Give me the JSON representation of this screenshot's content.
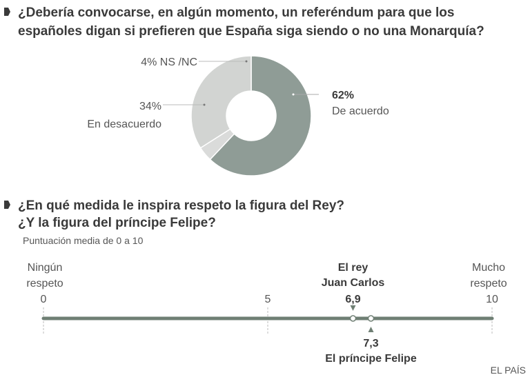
{
  "chart_data": [
    {
      "type": "pie",
      "variant": "donut",
      "title_lines": [
        "¿Debería convocarse, en algún momento, un referéndum para que los",
        "españoles digan si prefieren que España siga siendo o no una Monarquía?"
      ],
      "slices": [
        {
          "label": "De acuerdo",
          "value": 62,
          "value_label": "62%",
          "color": "#8f9c96"
        },
        {
          "label": "NS /NC",
          "value": 4,
          "value_label": "4%",
          "color": "#dadbda"
        },
        {
          "label": "En desacuerdo",
          "value": 34,
          "value_label": "34%",
          "color": "#d2d4d2"
        }
      ]
    },
    {
      "type": "scatter",
      "variant": "scale",
      "title_lines": [
        "¿En qué medida le inspira respeto la figura del Rey?",
        "¿Y la figura del príncipe Felipe?"
      ],
      "subtitle": "Puntuación media de 0 a 10",
      "xlim": [
        0,
        10
      ],
      "ticks": [
        {
          "v": 0,
          "label": "0"
        },
        {
          "v": 5,
          "label": "5"
        },
        {
          "v": 10,
          "label": "10"
        }
      ],
      "min_label": [
        "Ningún",
        "respeto"
      ],
      "max_label": [
        "Mucho",
        "respeto"
      ],
      "points": [
        {
          "name_lines": [
            "El rey",
            "Juan Carlos"
          ],
          "value": 6.9,
          "value_label": "6,9",
          "position": "above"
        },
        {
          "name_lines": [
            "El príncipe Felipe"
          ],
          "value": 7.3,
          "value_label": "7,3",
          "position": "below"
        }
      ],
      "line_color": "#6f7f74"
    }
  ],
  "source": "EL PAÍS"
}
